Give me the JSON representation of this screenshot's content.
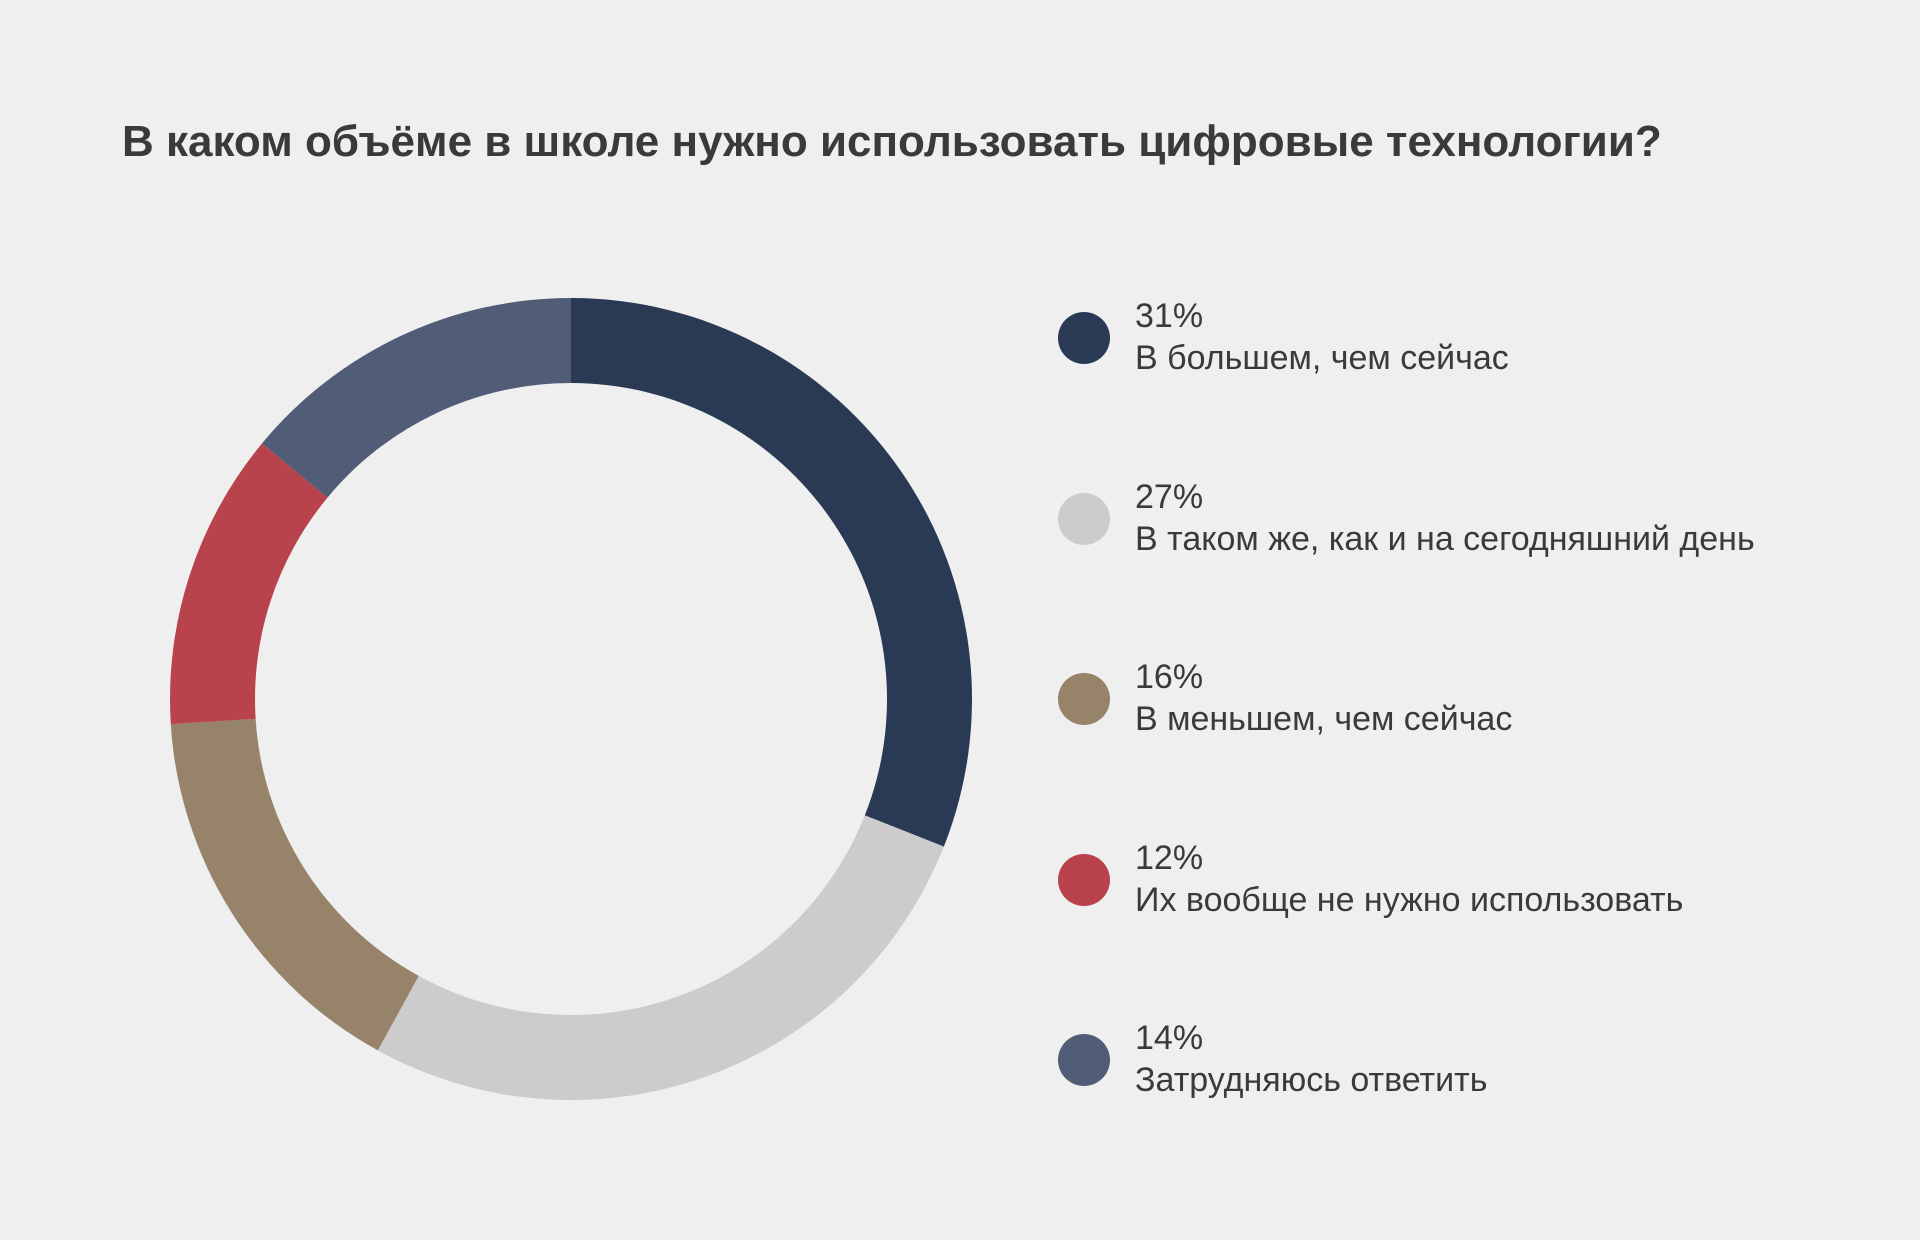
{
  "chart_data": {
    "type": "pie",
    "title": "В каком объёме в школе нужно использовать цифровые технологии?",
    "categories": [
      "В большем, чем сейчас",
      "В таком же, как и на сегодняшний день",
      "В меньшем, чем сейчас",
      "Их вообще не нужно использовать",
      "Затрудняюсь ответить"
    ],
    "values": [
      31,
      27,
      16,
      12,
      14
    ],
    "value_labels": [
      "31%",
      "27%",
      "16%",
      "12%",
      "14%"
    ],
    "colors": [
      "#2a3954",
      "#cccccc",
      "#968369",
      "#b8434d",
      "#515c77"
    ],
    "style": "donut",
    "legend": "right"
  }
}
